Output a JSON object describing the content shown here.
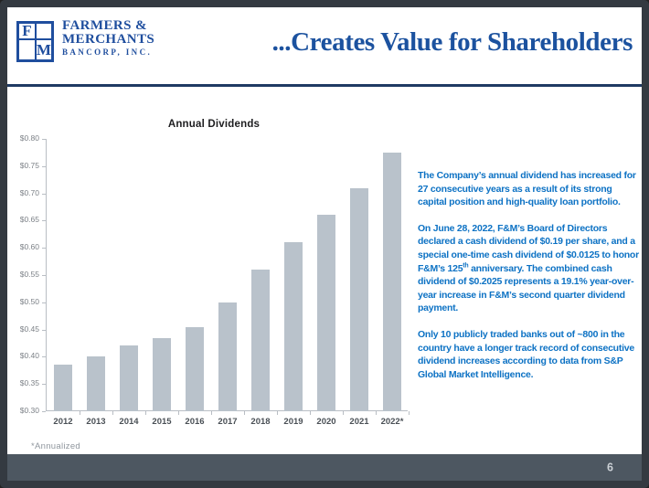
{
  "header": {
    "logo": {
      "letter_f": "F",
      "letter_m": "M",
      "line1": "FARMERS &",
      "line2": "MERCHANTS",
      "line3": "BANCORP, INC."
    },
    "title": "...Creates Value for Shareholders"
  },
  "text_panel": {
    "paragraph1": "The Company’s annual dividend has increased for 27 consecutive years as a result of its strong capital position and high-quality loan portfolio.",
    "paragraph2_pre": "On June 28, 2022, F&M’s Board of Directors declared a cash dividend of $0.19 per share, and a special one-time cash dividend of $0.0125 to honor F&M’s 125",
    "paragraph2_sup": "th",
    "paragraph2_post": " anniversary. The combined cash dividend of $0.2025 represents a 19.1% year-over-year increase in F&M’s second quarter dividend payment.",
    "paragraph3": "Only 10 publicly traded banks out of ~800 in the country have a longer track record of consecutive dividend increases according to data from S&P Global Market Intelligence."
  },
  "chart_data": {
    "type": "bar",
    "title": "Annual Dividends",
    "categories": [
      "2012",
      "2013",
      "2014",
      "2015",
      "2016",
      "2017",
      "2018",
      "2019",
      "2020",
      "2021",
      "2022*"
    ],
    "values": [
      0.385,
      0.4,
      0.42,
      0.435,
      0.455,
      0.5,
      0.56,
      0.61,
      0.66,
      0.71,
      0.775
    ],
    "xlabel": "",
    "ylabel": "",
    "ylim": [
      0.3,
      0.8
    ],
    "ytick_step": 0.05,
    "ytick_prefix": "$",
    "grid": false,
    "legend": false,
    "bar_color": "#b9c2cb",
    "footnote": "*Annualized"
  },
  "footer": {
    "page_number": "6"
  },
  "colors": {
    "brand_blue": "#1f4e9e",
    "title_blue": "#1c529f",
    "body_text_blue": "#0d72c4",
    "bar_fill": "#b9c2cb",
    "divider_navy": "#1f3a63",
    "footer_bar": "#4d5761",
    "frame": "#343a41"
  }
}
